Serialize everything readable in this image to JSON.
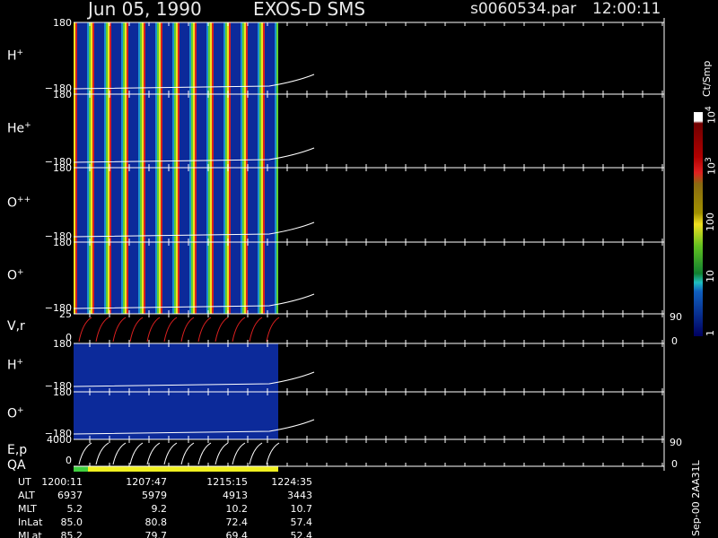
{
  "header": {
    "date": "Jun 05, 1990",
    "instrument": "EXOS-D SMS",
    "file": "s0060534.par",
    "time": "12:00:11"
  },
  "panels": [
    {
      "species": "H",
      "charge": "+",
      "top": "180",
      "bottom": "−180"
    },
    {
      "species": "He",
      "charge": "+",
      "top": "180",
      "bottom": "−180"
    },
    {
      "species": "O",
      "charge": "++",
      "top": "180",
      "bottom": "−180"
    },
    {
      "species": "O",
      "charge": "+",
      "top": "180",
      "bottom": "−180"
    },
    {
      "species": "V,r",
      "top": "25",
      "bottom": "0",
      "right_top": "90",
      "right_bottom": "0"
    },
    {
      "species": "H",
      "charge": "+",
      "top": "180",
      "bottom": "−180"
    },
    {
      "species": "O",
      "charge": "+",
      "top": "180",
      "bottom": "−180"
    },
    {
      "species": "E,p",
      "top": "4000",
      "bottom": "0",
      "right_top": "90",
      "right_bottom": "0"
    }
  ],
  "qa_label": "QA",
  "colorbar": {
    "unit": "Ct/Smp",
    "labels": [
      {
        "text": "10",
        "exp": "4"
      },
      {
        "text": "10",
        "exp": "3"
      },
      {
        "text": "100"
      },
      {
        "text": "10"
      },
      {
        "text": "1"
      }
    ]
  },
  "footer": {
    "rows": [
      [
        "UT",
        "1200:11",
        "1207:47",
        "1215:15",
        "1224:35"
      ],
      [
        "ALT",
        "6937",
        "5979",
        "4913",
        "3443"
      ],
      [
        "MLT",
        "5.2",
        "9.2",
        "10.2",
        "10.7"
      ],
      [
        "InLat",
        "85.0",
        "80.8",
        "72.4",
        "57.4"
      ],
      [
        "MLat",
        "85.2",
        "79.7",
        "69.4",
        "52.4"
      ]
    ]
  },
  "stamp": "Sep-00 2AA31L"
}
